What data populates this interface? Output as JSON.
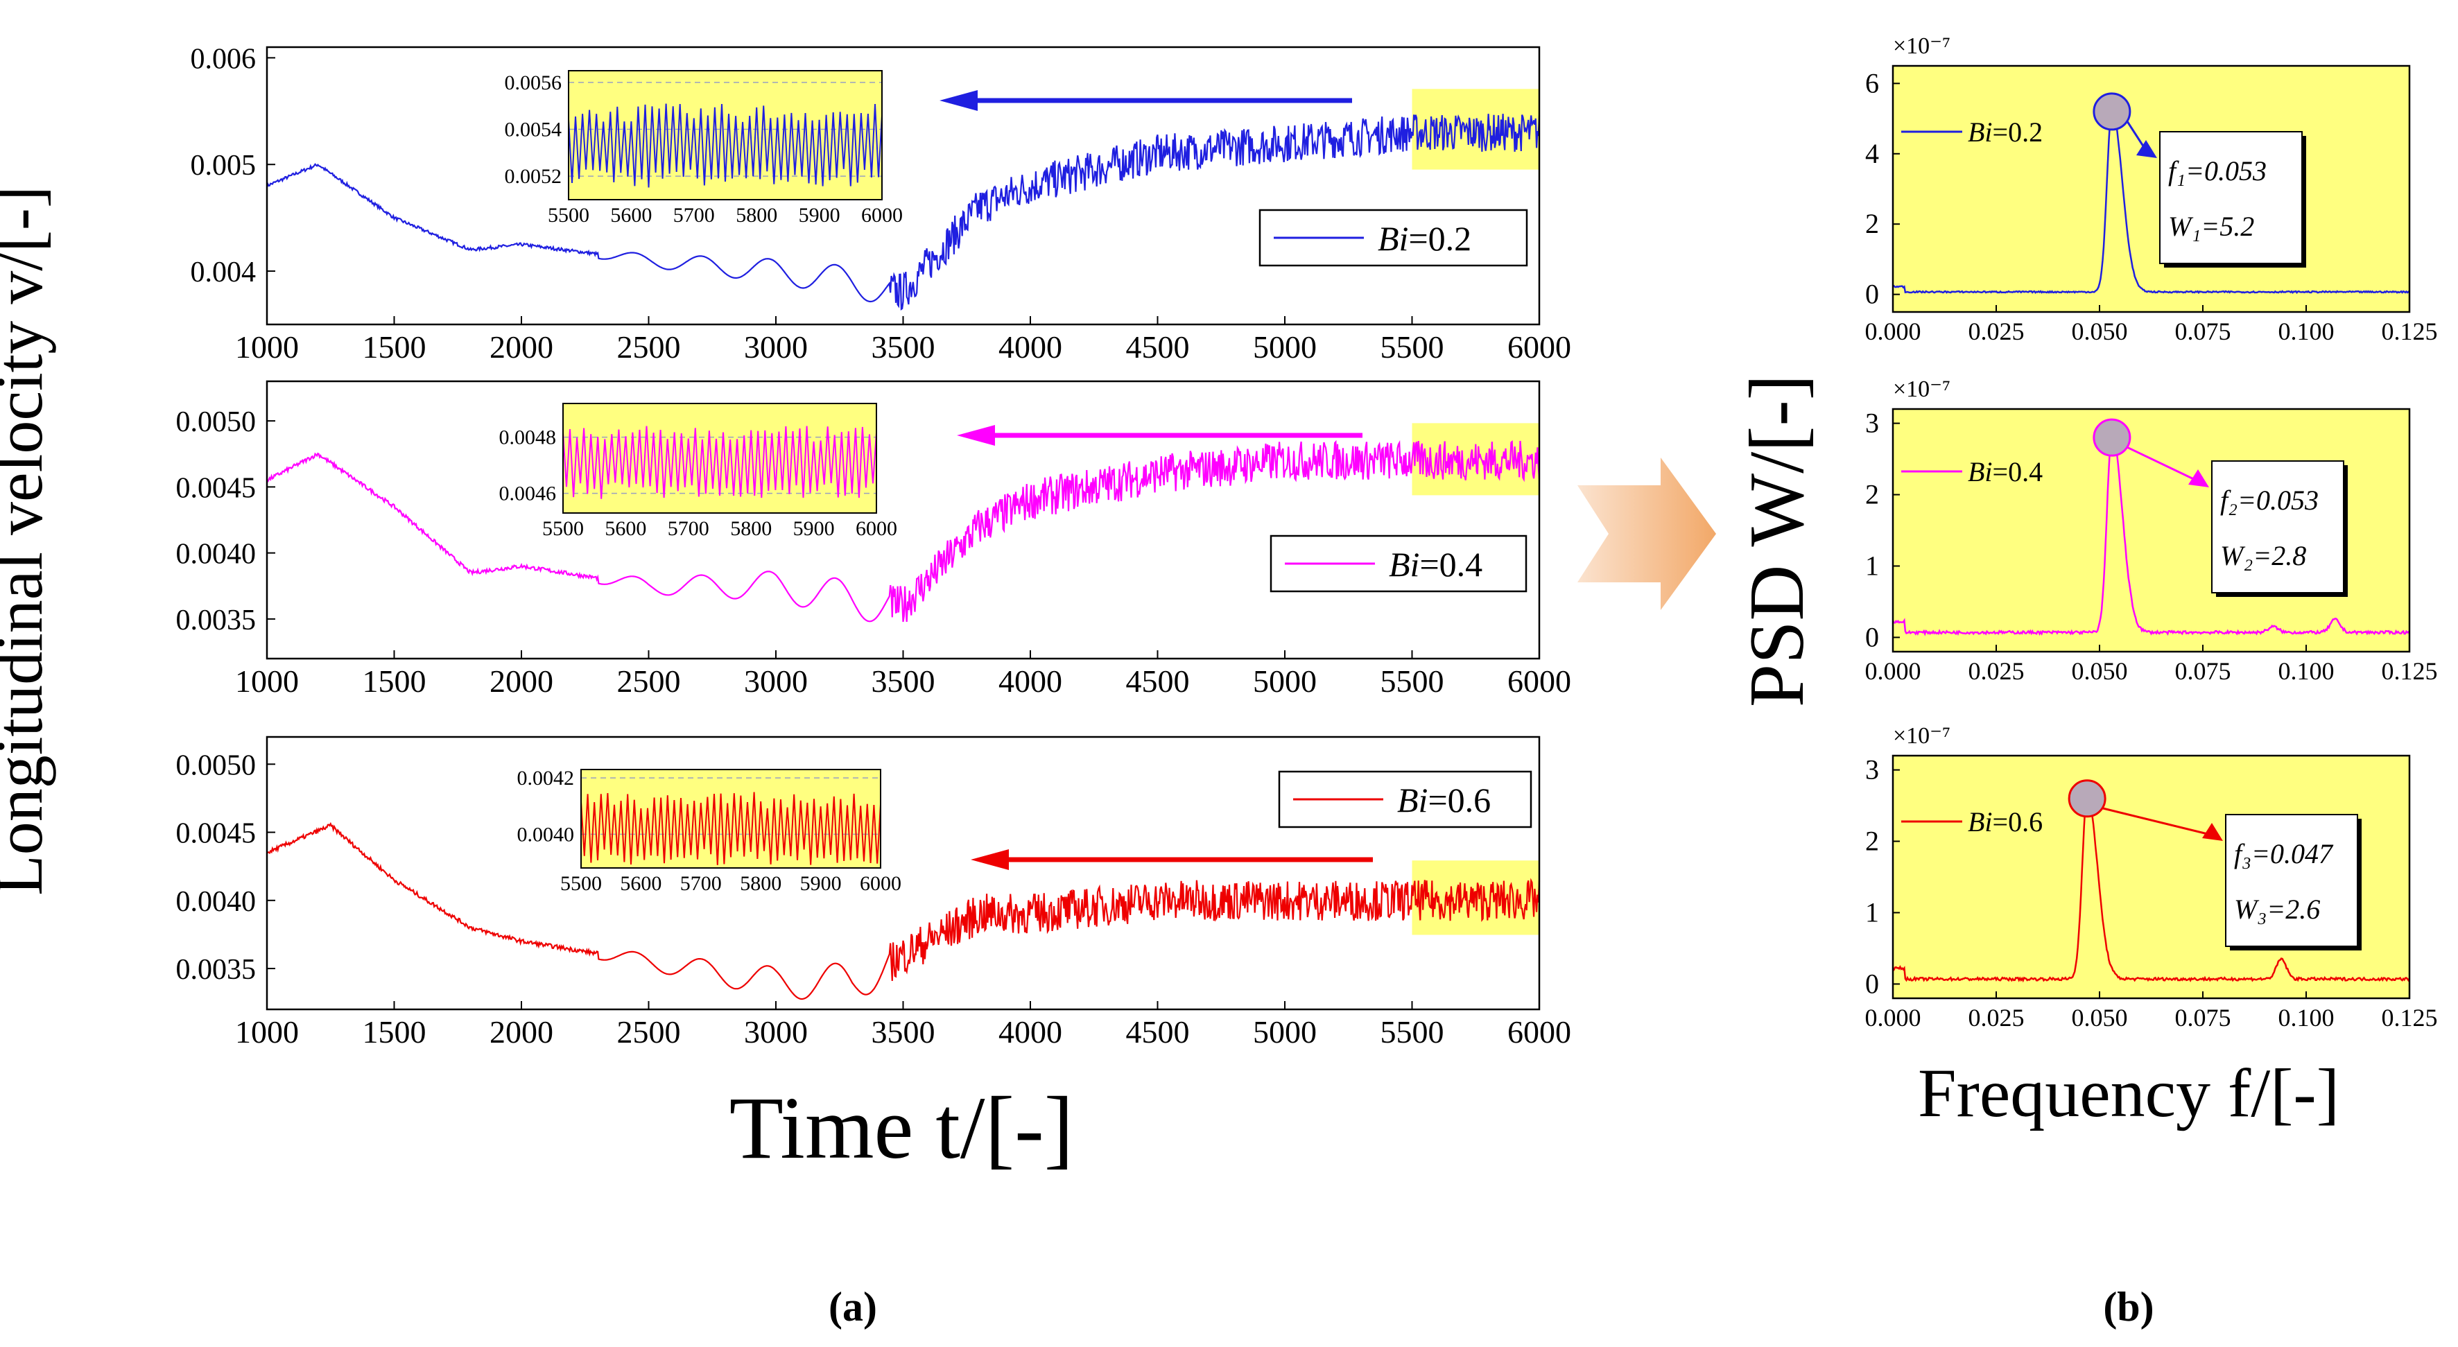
{
  "figure": {
    "left_ylabel": "Longitudinal velocity v/[-]",
    "left_xlabel": "Time t/[-]",
    "right_ylabel": "PSD W/[-]",
    "right_xlabel": "Frequency f/[-]",
    "caption_a": "(a)",
    "caption_b": "(b)",
    "psd_multiplier": "×10⁻⁷"
  },
  "colors": {
    "bi02": "#1f1fe0",
    "bi04": "#ff00ff",
    "bi06": "#ee0000",
    "panel_bg": "#ffff80",
    "highlight": "#ffff80",
    "marker": "#b8a9b9",
    "arrow": "#f7c49a"
  },
  "chart_data": [
    {
      "type": "line",
      "id": "vel_bi02",
      "legend": "Bi=0.2",
      "xlim": [
        1000,
        6000
      ],
      "ylim": [
        0.0035,
        0.0061
      ],
      "xticks": [
        "1000",
        "1500",
        "2000",
        "2500",
        "3000",
        "3500",
        "4000",
        "4500",
        "5000",
        "5500",
        "6000"
      ],
      "yticks": [
        "0.004",
        "0.005",
        "0.006"
      ],
      "series": [
        {
          "name": "Bi=0.2",
          "x": [
            1000,
            1200,
            1500,
            1800,
            2000,
            2500,
            3000,
            3300,
            3500,
            3800,
            4000,
            4500,
            5000,
            5500,
            6000
          ],
          "y": [
            0.0048,
            0.005,
            0.0045,
            0.0042,
            0.00425,
            0.0041,
            0.004,
            0.0039,
            0.0038,
            0.0046,
            0.0048,
            0.0051,
            0.0052,
            0.0053,
            0.0053
          ]
        }
      ],
      "inset": {
        "xlim": [
          5500,
          6000
        ],
        "ylim": [
          0.0051,
          0.00565
        ],
        "mean": 0.00533,
        "amp": 0.00018,
        "xticks": [
          "5500",
          "5600",
          "5700",
          "5800",
          "5900",
          "6000"
        ],
        "yticks": [
          "0.0052",
          "0.0054",
          "0.0056"
        ]
      }
    },
    {
      "type": "line",
      "id": "vel_bi04",
      "legend": "Bi=0.4",
      "xlim": [
        1000,
        6000
      ],
      "ylim": [
        0.0032,
        0.0053
      ],
      "xticks": [
        "1000",
        "1500",
        "2000",
        "2500",
        "3000",
        "3500",
        "4000",
        "4500",
        "5000",
        "5500",
        "6000"
      ],
      "yticks": [
        "0.0035",
        "0.0040",
        "0.0045",
        "0.0050"
      ],
      "series": [
        {
          "name": "Bi=0.4",
          "x": [
            1000,
            1200,
            1500,
            1800,
            2000,
            2500,
            3000,
            3300,
            3500,
            3800,
            4000,
            4500,
            5000,
            5500,
            6000
          ],
          "y": [
            0.00455,
            0.00475,
            0.00435,
            0.00385,
            0.0039,
            0.00375,
            0.00375,
            0.00365,
            0.0036,
            0.0042,
            0.0044,
            0.0046,
            0.0047,
            0.0047,
            0.0047
          ]
        }
      ],
      "inset": {
        "xlim": [
          5500,
          6000
        ],
        "ylim": [
          0.00453,
          0.00492
        ],
        "mean": 0.00471,
        "amp": 0.00013,
        "xticks": [
          "5500",
          "5600",
          "5700",
          "5800",
          "5900",
          "6000"
        ],
        "yticks": [
          "0.0046",
          "0.0048"
        ]
      }
    },
    {
      "type": "line",
      "id": "vel_bi06",
      "legend": "Bi=0.6",
      "xlim": [
        1000,
        6000
      ],
      "ylim": [
        0.0032,
        0.0052
      ],
      "xticks": [
        "1000",
        "1500",
        "2000",
        "2500",
        "3000",
        "3500",
        "4000",
        "4500",
        "5000",
        "5500",
        "6000"
      ],
      "yticks": [
        "0.0035",
        "0.0040",
        "0.0045",
        "0.0050"
      ],
      "series": [
        {
          "name": "Bi=0.6",
          "x": [
            1000,
            1250,
            1500,
            1800,
            2000,
            2500,
            3000,
            3300,
            3500,
            3800,
            4000,
            4500,
            5000,
            5500,
            6000
          ],
          "y": [
            0.00435,
            0.00455,
            0.00415,
            0.0038,
            0.0037,
            0.00355,
            0.0034,
            0.0034,
            0.0036,
            0.0039,
            0.0039,
            0.004,
            0.004,
            0.004,
            0.004
          ]
        }
      ],
      "inset": {
        "xlim": [
          5500,
          6000
        ],
        "ylim": [
          0.00388,
          0.00423
        ],
        "mean": 0.00402,
        "amp": 0.00013,
        "xticks": [
          "5500",
          "5600",
          "5700",
          "5800",
          "5900",
          "6000"
        ],
        "yticks": [
          "0.0040",
          "0.0042"
        ]
      }
    },
    {
      "type": "line",
      "id": "psd_bi02",
      "legend": "Bi=0.2",
      "xlim": [
        0,
        0.125
      ],
      "ylim": [
        -0.5,
        6.5
      ],
      "xticks": [
        "0.000",
        "0.025",
        "0.050",
        "0.075",
        "0.100",
        "0.125"
      ],
      "yticks": [
        "0",
        "2",
        "4",
        "6"
      ],
      "peak": {
        "f": 0.053,
        "W": 5.2,
        "f_label": "f₁=0.053",
        "w_label": "W₁=5.2"
      },
      "extra_peaks": []
    },
    {
      "type": "line",
      "id": "psd_bi04",
      "legend": "Bi=0.4",
      "xlim": [
        0,
        0.125
      ],
      "ylim": [
        -0.2,
        3.2
      ],
      "xticks": [
        "0.000",
        "0.025",
        "0.050",
        "0.075",
        "0.100",
        "0.125"
      ],
      "yticks": [
        "0",
        "1",
        "2",
        "3"
      ],
      "peak": {
        "f": 0.053,
        "W": 2.8,
        "f_label": "f₂=0.053",
        "w_label": "W₂=2.8"
      },
      "extra_peaks": [
        {
          "f": 0.092,
          "W": 0.08
        },
        {
          "f": 0.107,
          "W": 0.18
        }
      ]
    },
    {
      "type": "line",
      "id": "psd_bi06",
      "legend": "Bi=0.6",
      "xlim": [
        0,
        0.125
      ],
      "ylim": [
        -0.2,
        3.2
      ],
      "xticks": [
        "0.000",
        "0.025",
        "0.050",
        "0.075",
        "0.100",
        "0.125"
      ],
      "yticks": [
        "0",
        "1",
        "2",
        "3"
      ],
      "peak": {
        "f": 0.047,
        "W": 2.6,
        "f_label": "f₃=0.047",
        "w_label": "W₃=2.6"
      },
      "extra_peaks": [
        {
          "f": 0.094,
          "W": 0.28
        }
      ]
    }
  ]
}
